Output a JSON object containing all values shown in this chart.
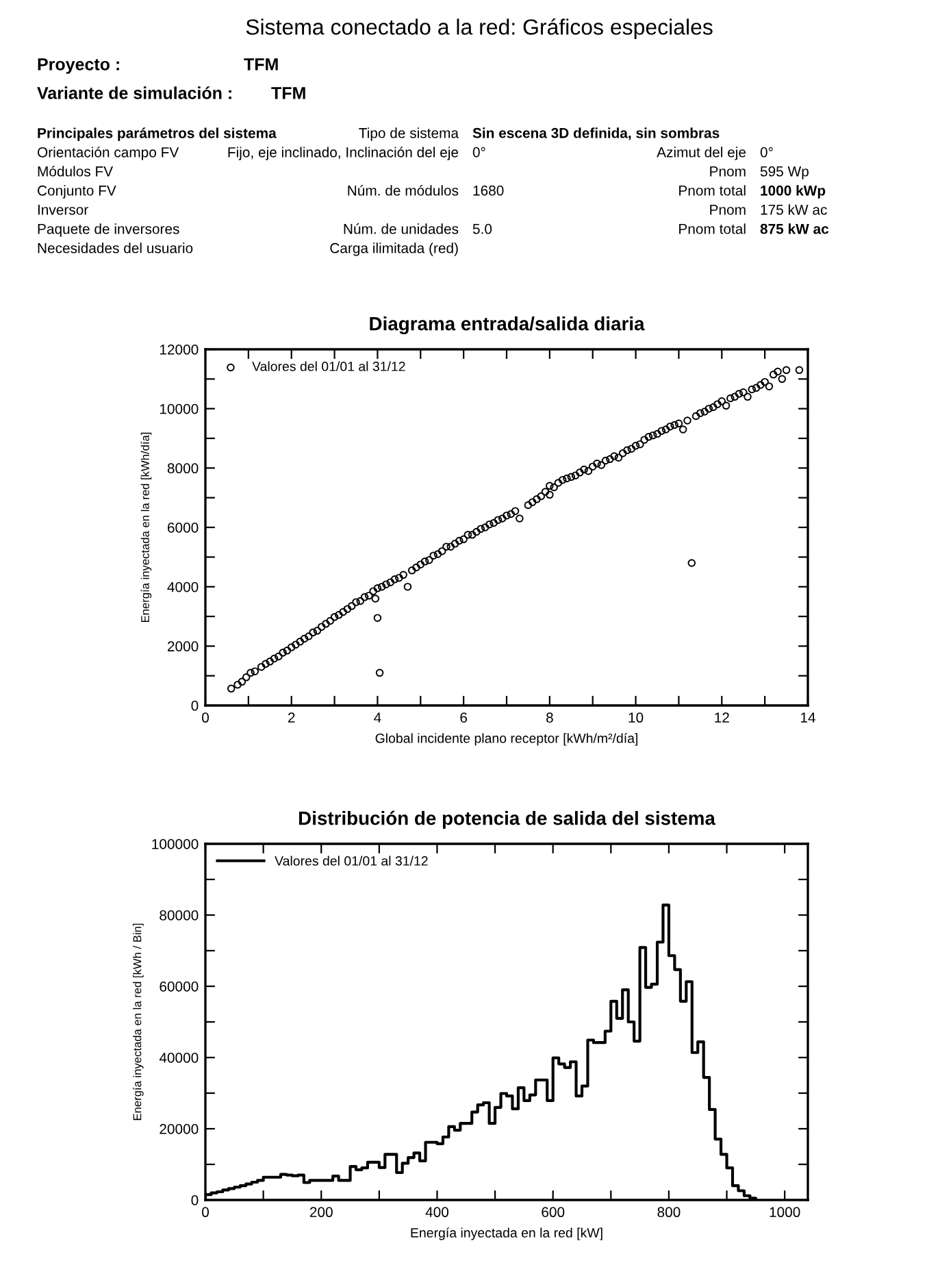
{
  "chart_data": [
    {
      "type": "other",
      "title": "Sistema conectado a la red: Gráficos especiales",
      "annotations": [
        "Proyecto :",
        "TFM",
        "Variante de simulación :",
        "TFM",
        "Principales parámetros del sistema",
        "Tipo de sistema",
        "Sin escena 3D definida, sin sombras",
        "Orientación campo FV",
        "Fijo, eje inclinado, Inclinación del eje",
        "0°",
        "Azimut del eje",
        "0°",
        "Módulos FV",
        "Pnom",
        "595 Wp",
        "Conjunto FV",
        "Núm. de módulos",
        "1680",
        "Pnom total",
        "1000 kWp",
        "Inversor",
        "Pnom",
        "175 kW ac",
        "Paquete de inversores",
        "Núm. de unidades",
        "5.0",
        "Pnom total",
        "875 kW ac",
        "Necesidades del usuario",
        "Carga ilimitada (red)"
      ]
    },
    {
      "type": "scatter",
      "title": "Diagrama entrada/salida diaria",
      "xlabel": "Global incidente plano receptor [kWh/m²/día]",
      "ylabel": "Energía inyectada en la red [kWh/día]",
      "xlim": [
        0,
        14
      ],
      "ylim": [
        0,
        12000
      ],
      "xticks": [
        0,
        {
          "value": 1,
          "label": null
        },
        2,
        {
          "value": 3,
          "label": null
        },
        4,
        {
          "value": 5,
          "label": null
        },
        6,
        {
          "value": 7,
          "label": null
        },
        8,
        {
          "value": 9,
          "label": null
        },
        10,
        {
          "value": 11,
          "label": null
        },
        12,
        {
          "value": 13,
          "label": null
        },
        14
      ],
      "yticks": [
        0,
        {
          "value": 1000,
          "label": null
        },
        2000,
        {
          "value": 3000,
          "label": null
        },
        4000,
        {
          "value": 5000,
          "label": null
        },
        6000,
        {
          "value": 7000,
          "label": null
        },
        8000,
        {
          "value": 9000,
          "label": null
        },
        10000,
        {
          "value": 11000,
          "label": null
        },
        12000
      ],
      "marker": "circle",
      "legend": "upper left",
      "series": [
        {
          "name": "Valores del 01/01 al 31/12",
          "color": "#000000",
          "x": [
            0.6,
            0.75,
            0.85,
            0.95,
            1.05,
            1.15,
            1.3,
            1.4,
            1.5,
            1.6,
            1.7,
            1.8,
            1.9,
            2.0,
            2.1,
            2.2,
            2.3,
            2.4,
            2.5,
            2.6,
            2.7,
            2.8,
            2.9,
            3.0,
            3.1,
            3.2,
            3.3,
            3.4,
            3.5,
            3.6,
            3.7,
            3.8,
            3.9,
            3.95,
            4.0,
            4.0,
            4.05,
            4.1,
            4.2,
            4.3,
            4.4,
            4.5,
            4.6,
            4.7,
            4.8,
            4.9,
            5.0,
            5.1,
            5.2,
            5.3,
            5.4,
            5.5,
            5.6,
            5.7,
            5.8,
            5.9,
            6.0,
            6.1,
            6.2,
            6.3,
            6.4,
            6.5,
            6.6,
            6.7,
            6.8,
            6.9,
            7.0,
            7.1,
            7.2,
            7.3,
            7.5,
            7.6,
            7.7,
            7.8,
            7.9,
            8.0,
            8.0,
            8.1,
            8.2,
            8.3,
            8.4,
            8.5,
            8.6,
            8.7,
            8.8,
            8.9,
            9.0,
            9.1,
            9.2,
            9.3,
            9.4,
            9.5,
            9.6,
            9.7,
            9.8,
            9.9,
            10.0,
            10.1,
            10.2,
            10.3,
            10.4,
            10.5,
            10.6,
            10.7,
            10.8,
            10.9,
            11.0,
            11.1,
            11.2,
            11.3,
            11.4,
            11.5,
            11.6,
            11.7,
            11.8,
            11.9,
            12.0,
            12.1,
            12.2,
            12.3,
            12.4,
            12.5,
            12.6,
            12.7,
            12.8,
            12.9,
            13.0,
            13.1,
            13.2,
            13.3,
            13.4,
            13.5,
            13.8
          ],
          "values": [
            570,
            700,
            800,
            950,
            1100,
            1150,
            1300,
            1400,
            1480,
            1580,
            1650,
            1780,
            1850,
            1960,
            2050,
            2150,
            2250,
            2330,
            2460,
            2520,
            2650,
            2750,
            2850,
            2980,
            3050,
            3150,
            3250,
            3350,
            3480,
            3520,
            3650,
            3700,
            3850,
            3600,
            3950,
            2950,
            1100,
            4000,
            4080,
            4150,
            4250,
            4300,
            4400,
            4000,
            4550,
            4650,
            4750,
            4850,
            4900,
            5050,
            5100,
            5200,
            5350,
            5350,
            5450,
            5550,
            5600,
            5750,
            5750,
            5850,
            5950,
            6000,
            6100,
            6150,
            6250,
            6300,
            6400,
            6450,
            6550,
            6300,
            6750,
            6850,
            6950,
            7050,
            7200,
            7400,
            7100,
            7350,
            7500,
            7600,
            7650,
            7700,
            7750,
            7850,
            7950,
            7900,
            8050,
            8150,
            8100,
            8250,
            8300,
            8400,
            8350,
            8500,
            8600,
            8650,
            8750,
            8800,
            8950,
            9050,
            9100,
            9150,
            9250,
            9300,
            9400,
            9450,
            9500,
            9300,
            9600,
            4800,
            9750,
            9850,
            9900,
            10000,
            10050,
            10150,
            10250,
            10100,
            10350,
            10400,
            10500,
            10550,
            10400,
            10650,
            10700,
            10800,
            10900,
            10750,
            11150,
            11250,
            11000,
            11300,
            11300
          ]
        }
      ]
    },
    {
      "type": "histogram",
      "title": "Distribución de potencia de salida del sistema",
      "xlabel": "Energía inyectada en la red [kW]",
      "ylabel": "Energía inyectada en la red [kWh / Bin]",
      "xlim": [
        0,
        1040
      ],
      "ylim": [
        0,
        100000
      ],
      "xticks": [
        0,
        {
          "value": 100,
          "label": null
        },
        200,
        {
          "value": 300,
          "label": null
        },
        400,
        {
          "value": 500,
          "label": null
        },
        600,
        {
          "value": 700,
          "label": null
        },
        800,
        {
          "value": 900,
          "label": null
        },
        1000
      ],
      "yticks": [
        0,
        {
          "value": 10000,
          "label": null
        },
        20000,
        {
          "value": 30000,
          "label": null
        },
        40000,
        {
          "value": 50000,
          "label": null
        },
        60000,
        {
          "value": 70000,
          "label": null
        },
        80000,
        {
          "value": 90000,
          "label": null
        },
        100000
      ],
      "legend": "upper left",
      "line_style": "solid",
      "bins": [
        0,
        10,
        20,
        30,
        40,
        50,
        60,
        70,
        80,
        90,
        100,
        110,
        120,
        130,
        140,
        150,
        160,
        170,
        180,
        190,
        200,
        210,
        220,
        230,
        240,
        250,
        260,
        270,
        280,
        290,
        300,
        310,
        320,
        330,
        340,
        350,
        360,
        370,
        380,
        390,
        400,
        410,
        420,
        430,
        440,
        450,
        460,
        470,
        480,
        490,
        500,
        510,
        520,
        530,
        540,
        550,
        560,
        570,
        580,
        590,
        600,
        610,
        620,
        630,
        640,
        650,
        660,
        670,
        680,
        690,
        700,
        710,
        720,
        730,
        740,
        750,
        760,
        770,
        780,
        790,
        800,
        810,
        820,
        830,
        840,
        850,
        860,
        870,
        880,
        890,
        900,
        910,
        920,
        930,
        940,
        950
      ],
      "series": [
        {
          "name": "Valores del 01/01 al 31/12",
          "color": "#000000",
          "values": [
            1500,
            2000,
            2300,
            2800,
            3200,
            3600,
            4000,
            4500,
            5000,
            5500,
            6400,
            6400,
            6400,
            7200,
            7000,
            6800,
            7000,
            4900,
            5500,
            5500,
            5500,
            5500,
            6700,
            5500,
            5500,
            9400,
            8500,
            9000,
            10600,
            10600,
            9100,
            12800,
            12800,
            7700,
            10300,
            11900,
            13200,
            11000,
            16200,
            16200,
            15800,
            17700,
            20600,
            19600,
            21500,
            21500,
            24700,
            26700,
            27300,
            21500,
            26000,
            29900,
            29200,
            25600,
            31500,
            27900,
            29500,
            33700,
            33700,
            27900,
            39900,
            38200,
            37200,
            38800,
            29200,
            32000,
            44900,
            44200,
            44200,
            47400,
            55800,
            51000,
            59000,
            50000,
            44600,
            70900,
            59700,
            60600,
            72400,
            82800,
            68600,
            64700,
            55800,
            61300,
            41400,
            44400,
            34400,
            25400,
            17100,
            12800,
            9000,
            4000,
            2600,
            1200,
            500
          ]
        }
      ]
    }
  ]
}
